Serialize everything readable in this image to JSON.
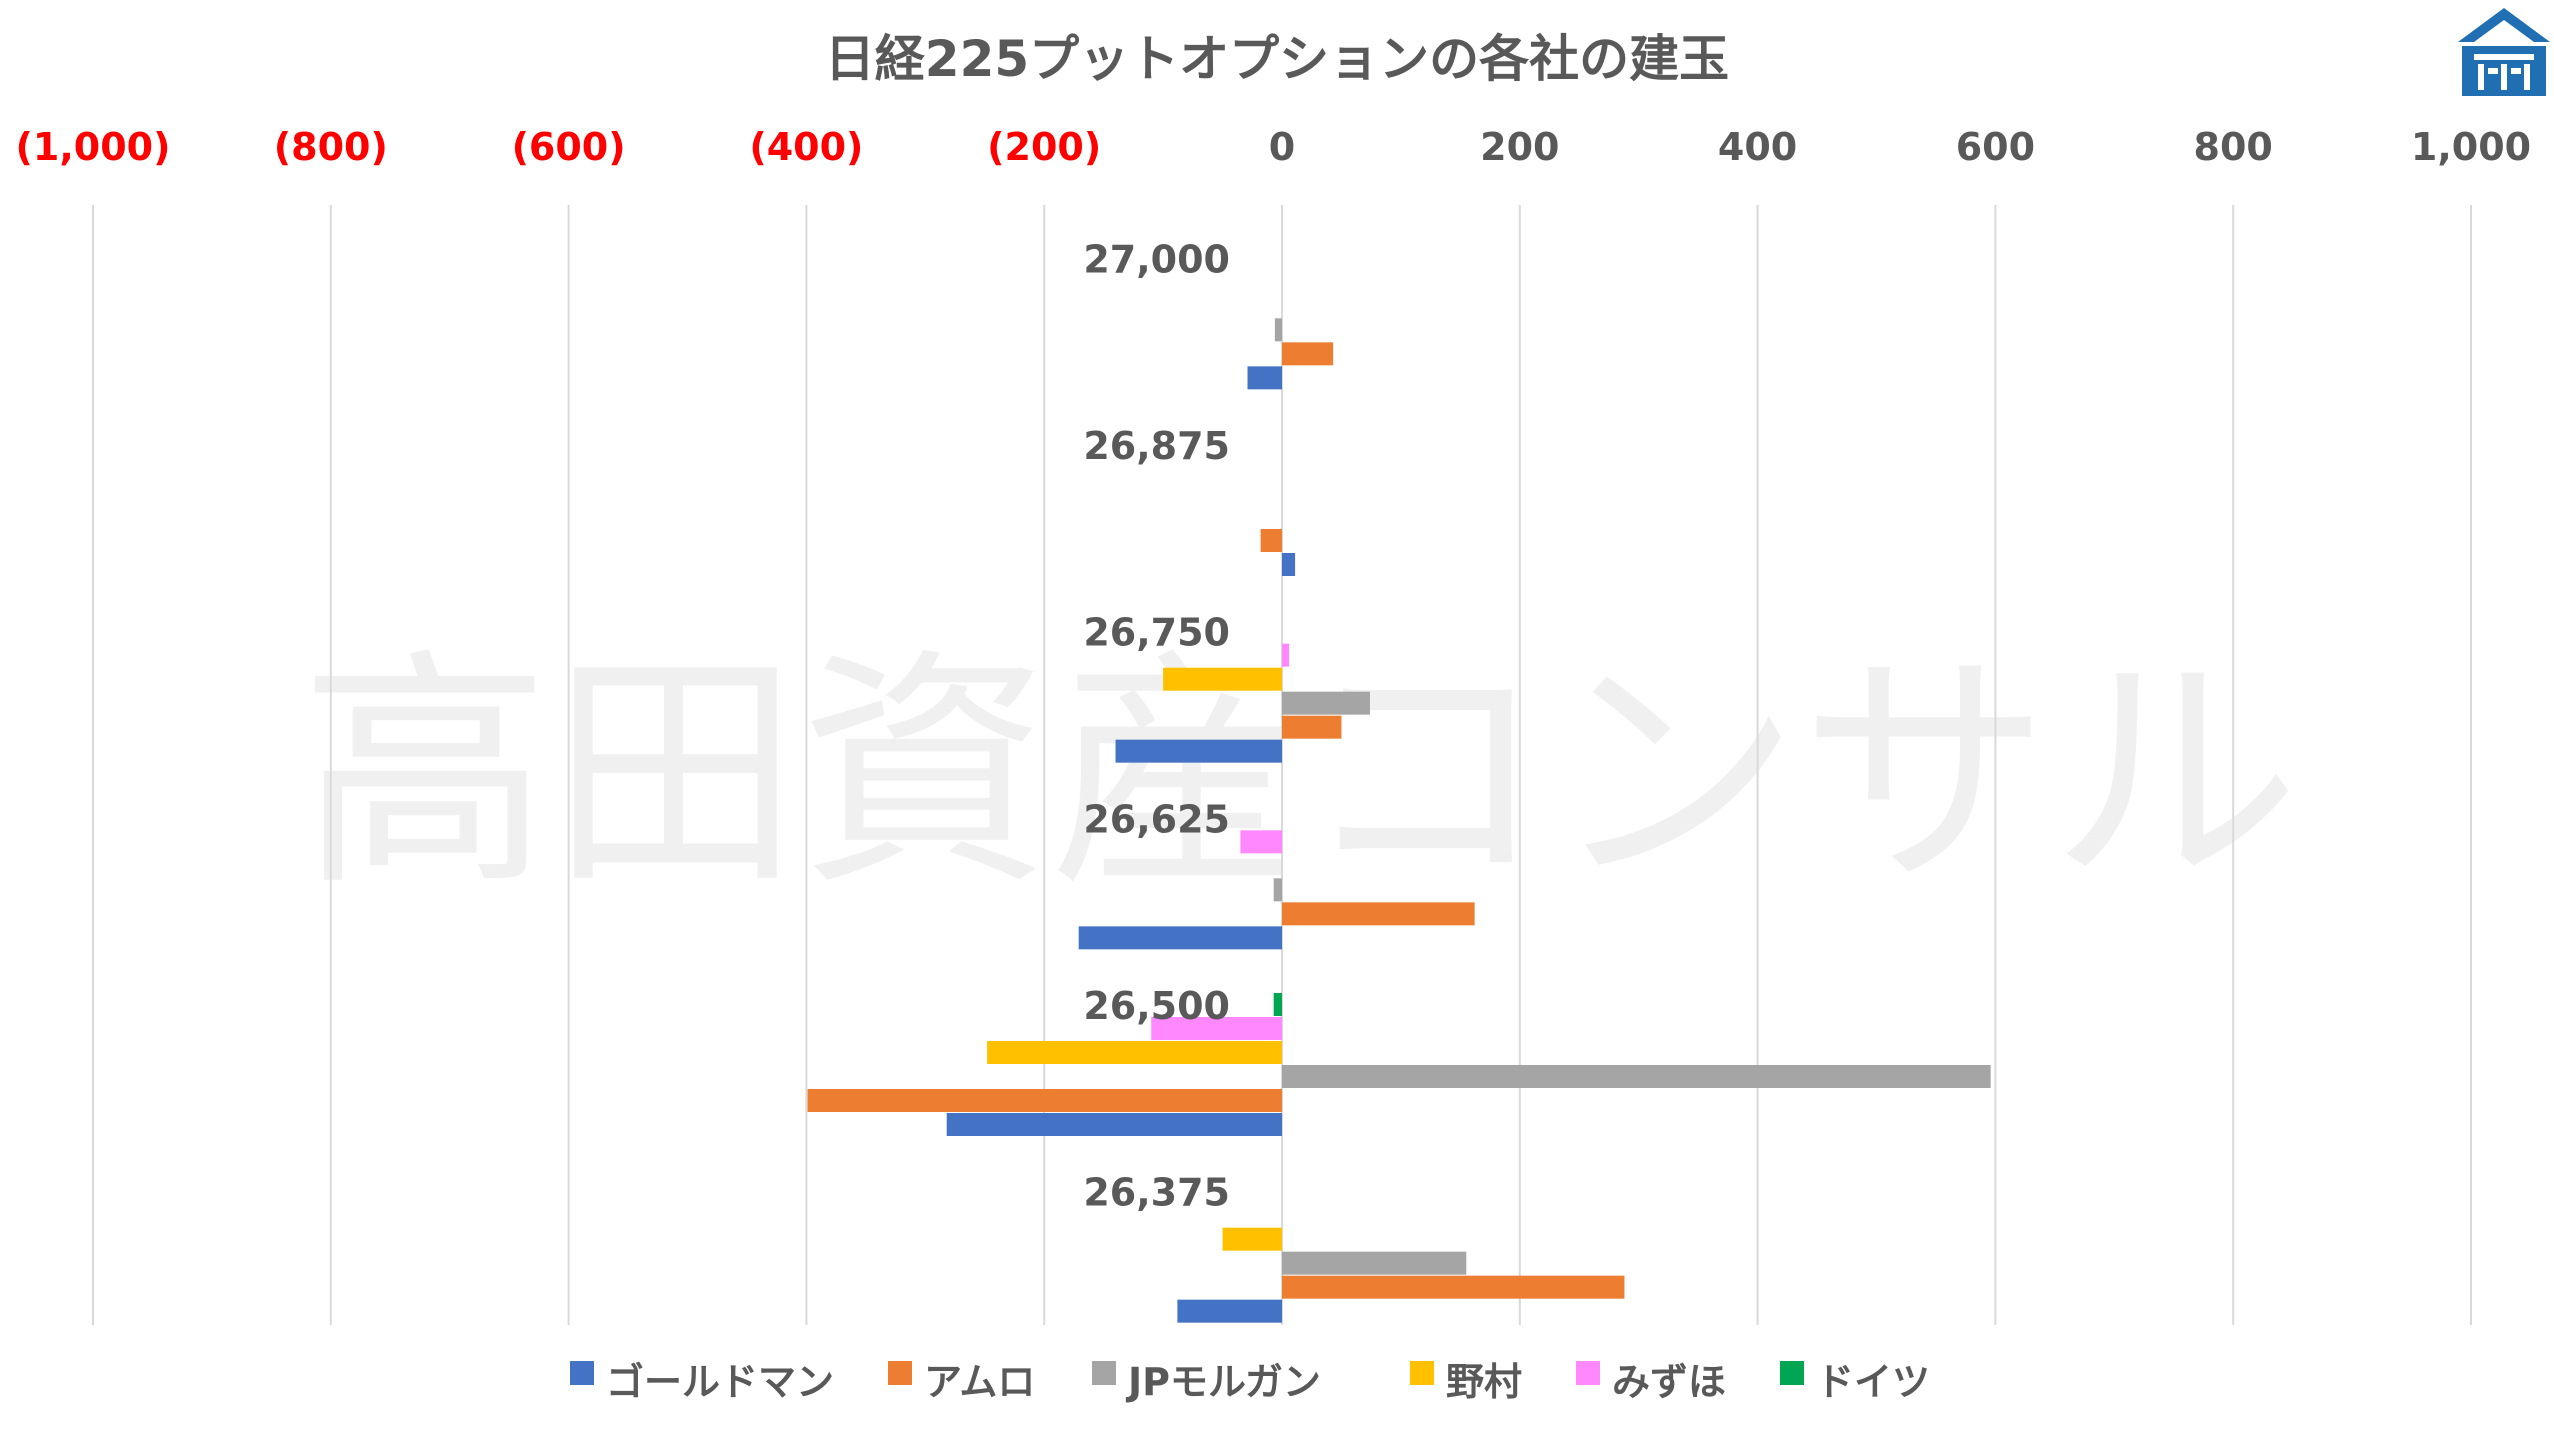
{
  "colors": {
    "ドイツ": "#00a651",
    "みずほ": "#ff88ff",
    "野村": "#ffc000",
    "JPモルガン": "#a5a5a5",
    "アムロ": "#ed7d31",
    "ゴールドマン": "#4472c4",
    "negative_tick": "#ff0000",
    "positive_tick": "#595959",
    "logo": "#1f6fb2"
  },
  "watermark": "高田資産コンサル",
  "logo_icon": "house-logo-icon",
  "chart_data": {
    "type": "bar",
    "orientation": "horizontal",
    "title": "日経225プットオプションの各社の建玉",
    "categories": [
      "27,000",
      "26,875",
      "26,750",
      "26,625",
      "26,500",
      "26,375"
    ],
    "xlim": [
      -1000,
      1000
    ],
    "x_ticks": [
      -1000,
      -800,
      -600,
      -400,
      -200,
      0,
      200,
      400,
      600,
      800,
      1000
    ],
    "x_tick_labels": [
      "(1,000)",
      "(800)",
      "(600)",
      "(400)",
      "(200)",
      "0",
      "200",
      "400",
      "600",
      "800",
      "1,000"
    ],
    "grid": true,
    "legend_position": "bottom",
    "series": [
      {
        "name": "ドイツ",
        "values": [
          0,
          0,
          0,
          0,
          -7,
          0
        ]
      },
      {
        "name": "みずほ",
        "values": [
          0,
          0,
          6,
          -35,
          -110,
          0
        ]
      },
      {
        "name": "野村",
        "values": [
          0,
          0,
          -100,
          0,
          -248,
          -50
        ]
      },
      {
        "name": "JPモルガン",
        "values": [
          -6,
          0,
          74,
          -7,
          596,
          155
        ]
      },
      {
        "name": "アムロ",
        "values": [
          43,
          -18,
          50,
          162,
          -399,
          288
        ]
      },
      {
        "name": "ゴールドマン",
        "values": [
          -29,
          11,
          -140,
          -171,
          -282,
          -88
        ]
      }
    ]
  }
}
